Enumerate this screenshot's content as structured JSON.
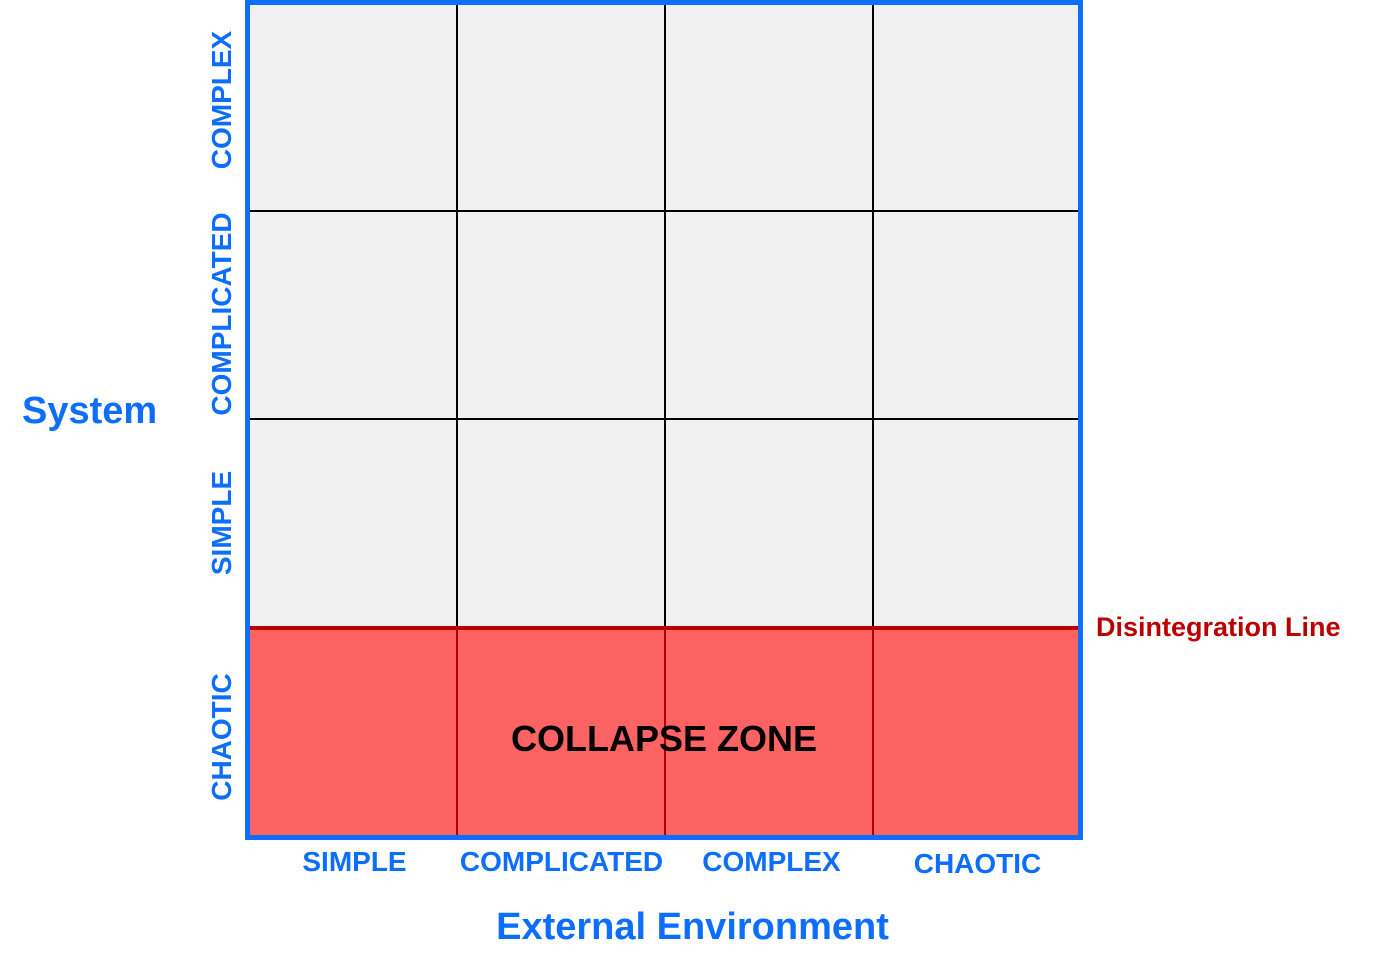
{
  "diagram": {
    "y_title": "System",
    "x_title": "External Environment",
    "y_ticks": [
      "COMPLEX",
      "COMPLICATED",
      "SIMPLE",
      "CHAOTIC"
    ],
    "x_ticks": [
      "SIMPLE",
      "COMPLICATED",
      "COMPLEX",
      "CHAOTIC"
    ],
    "zone_label": "COLLAPSE ZONE",
    "line_label": "Disintegration Line",
    "colors": {
      "axis_blue": "#0d6efd",
      "cell_fill": "#f1f1f1",
      "collapse_fill": "#fe6363",
      "disintegration_red": "#bb0000"
    }
  }
}
